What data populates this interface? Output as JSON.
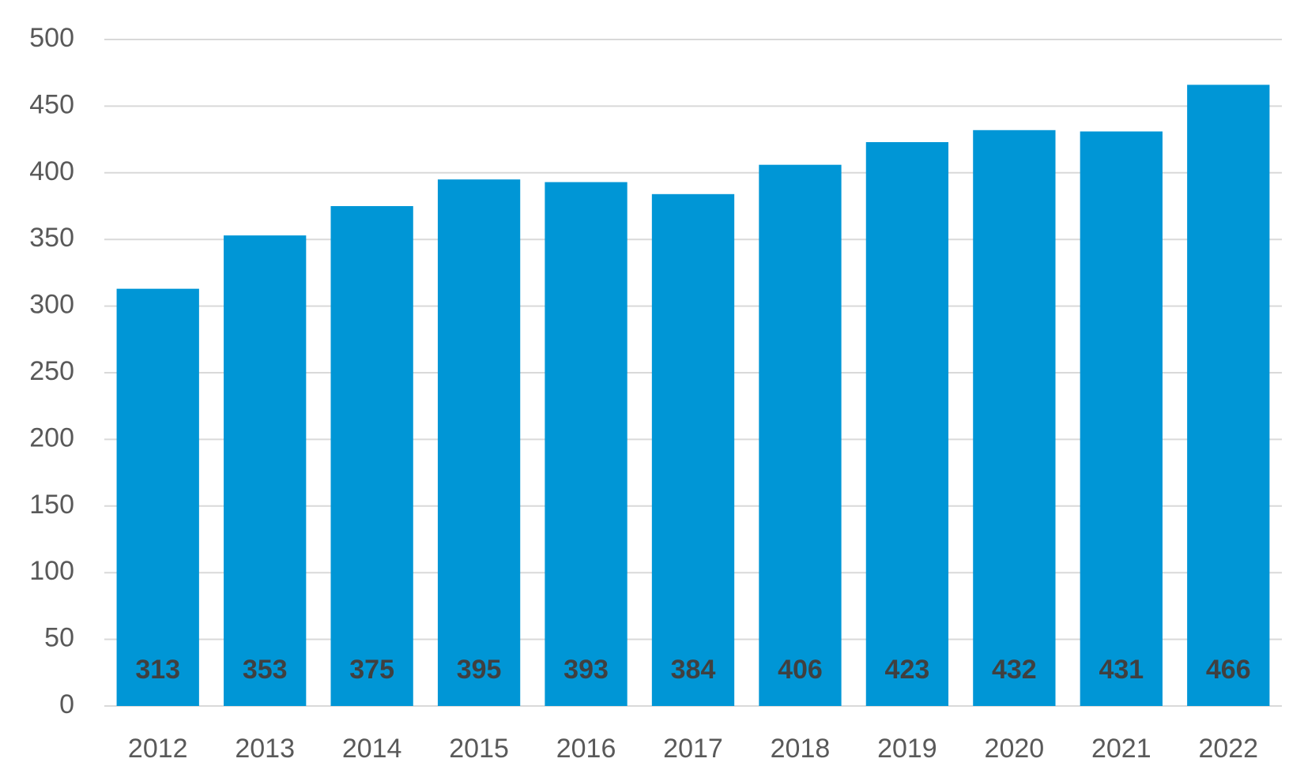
{
  "chart_data": {
    "type": "bar",
    "title": "",
    "xlabel": "",
    "ylabel": "",
    "categories": [
      "2012",
      "2013",
      "2014",
      "2015",
      "2016",
      "2017",
      "2018",
      "2019",
      "2020",
      "2021",
      "2022"
    ],
    "values": [
      313,
      353,
      375,
      395,
      393,
      384,
      406,
      423,
      432,
      431,
      466
    ],
    "ylim": [
      0,
      500
    ],
    "yticks": [
      0,
      50,
      100,
      150,
      200,
      250,
      300,
      350,
      400,
      450,
      500
    ],
    "grid": true,
    "legend": "none",
    "data_labels": "inside-bottom",
    "colors": {
      "bar": "#0096d6",
      "data_label": "#404040",
      "tick_label": "#595959",
      "grid": "#d9d9d9"
    }
  }
}
